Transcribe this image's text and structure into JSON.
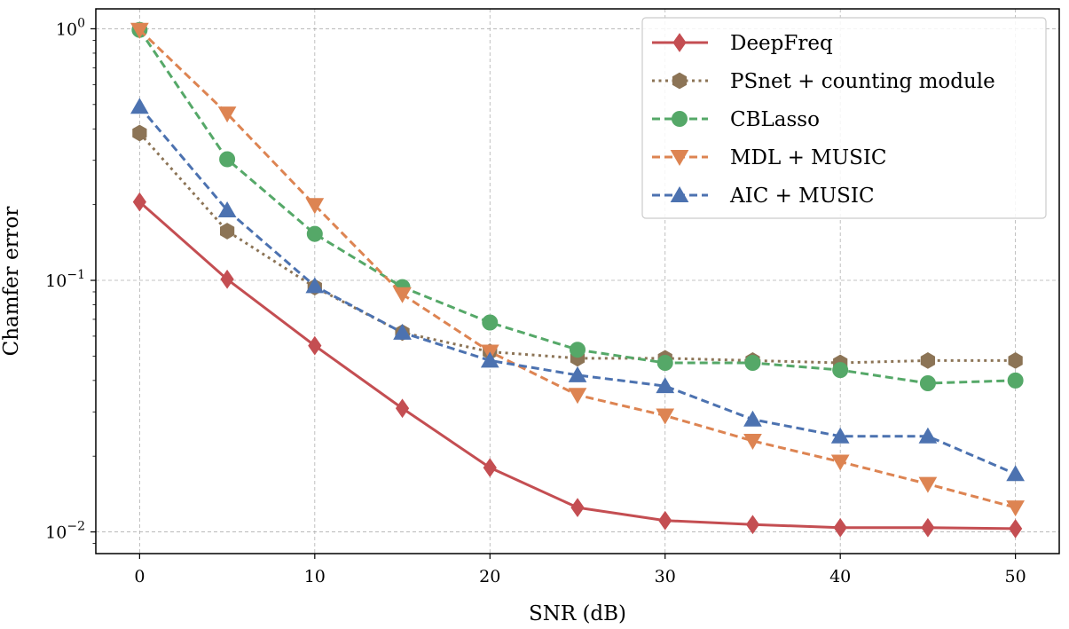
{
  "chart_data": {
    "type": "line",
    "xlabel": "SNR (dB)",
    "ylabel": "Chamfer error",
    "yscale": "log",
    "xlim": [
      -2.5,
      52.5
    ],
    "ylim": [
      0.0082,
      1.2
    ],
    "grid": true,
    "legend_position": "top-right",
    "x": [
      0,
      5,
      10,
      15,
      20,
      25,
      30,
      35,
      40,
      45,
      50
    ],
    "x_ticks": [
      "0",
      "10",
      "20",
      "30",
      "40",
      "50"
    ],
    "y_ticks": [
      {
        "value": 1,
        "base": "10",
        "exp": "0"
      },
      {
        "value": 0.1,
        "base": "10",
        "exp": "−1"
      },
      {
        "value": 0.01,
        "base": "10",
        "exp": "−2"
      }
    ],
    "series": [
      {
        "name": "DeepFreq",
        "color": "#c44e52",
        "line": "solid",
        "marker": "diamond",
        "values": [
          0.205,
          0.101,
          0.055,
          0.031,
          0.018,
          0.0125,
          0.0111,
          0.0107,
          0.0104,
          0.0104,
          0.0103
        ]
      },
      {
        "name": "PSnet + counting module",
        "color": "#8c7456",
        "line": "dotted",
        "marker": "hexagon",
        "values": [
          0.385,
          0.157,
          0.094,
          0.062,
          0.052,
          0.049,
          0.049,
          0.048,
          0.047,
          0.048,
          0.048
        ]
      },
      {
        "name": "CBLasso",
        "color": "#55a868",
        "line": "dashed",
        "marker": "circle",
        "values": [
          0.99,
          0.303,
          0.153,
          0.094,
          0.068,
          0.053,
          0.047,
          0.047,
          0.044,
          0.039,
          0.04
        ]
      },
      {
        "name": "MDL + MUSIC",
        "color": "#dd8452",
        "line": "dashed",
        "marker": "triangle-down",
        "values": [
          0.99,
          0.46,
          0.199,
          0.088,
          0.052,
          0.035,
          0.029,
          0.023,
          0.019,
          0.0155,
          0.0125
        ]
      },
      {
        "name": "AIC + MUSIC",
        "color": "#4c72b0",
        "line": "dashed",
        "marker": "triangle-up",
        "values": [
          0.49,
          0.19,
          0.095,
          0.062,
          0.048,
          0.042,
          0.038,
          0.028,
          0.024,
          0.024,
          0.017
        ]
      }
    ]
  }
}
